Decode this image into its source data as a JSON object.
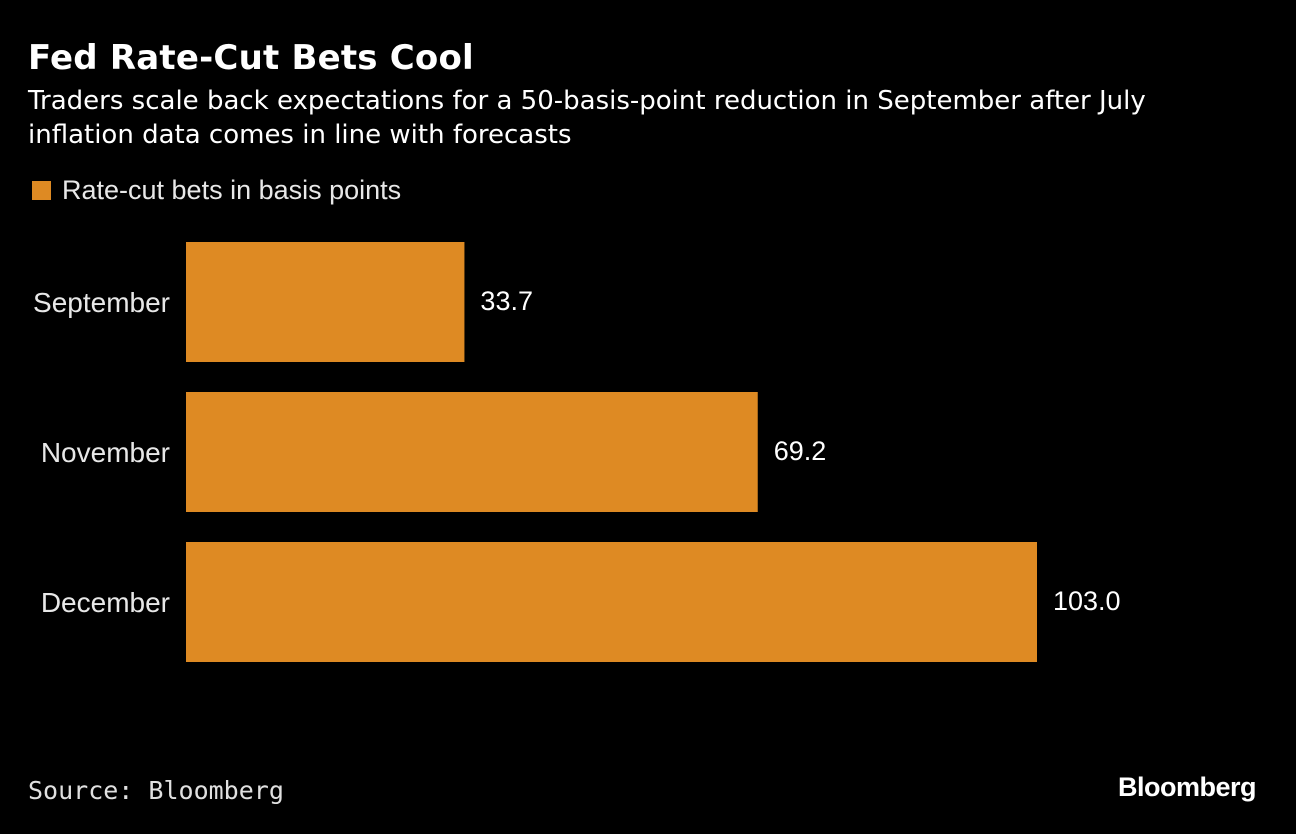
{
  "header": {
    "title": "Fed Rate-Cut Bets Cool",
    "subtitle": "Traders scale back expectations for a 50-basis-point reduction in September after July inflation data comes in line with forecasts"
  },
  "colors": {
    "background": "#000000",
    "bar": "#DE8A23",
    "text": "#ffffff"
  },
  "chart_data": {
    "type": "bar",
    "orientation": "horizontal",
    "categories": [
      "September",
      "November",
      "December"
    ],
    "series": [
      {
        "name": "Rate-cut bets in basis points",
        "values": [
          33.7,
          69.2,
          103.0
        ],
        "value_labels": [
          "33.7",
          "69.2",
          "103.0"
        ]
      }
    ],
    "xlim": [
      0,
      103.0
    ],
    "grid": false,
    "legend_position": "top-left"
  },
  "footer": {
    "source": "Source: Bloomberg",
    "brand": "Bloomberg"
  }
}
